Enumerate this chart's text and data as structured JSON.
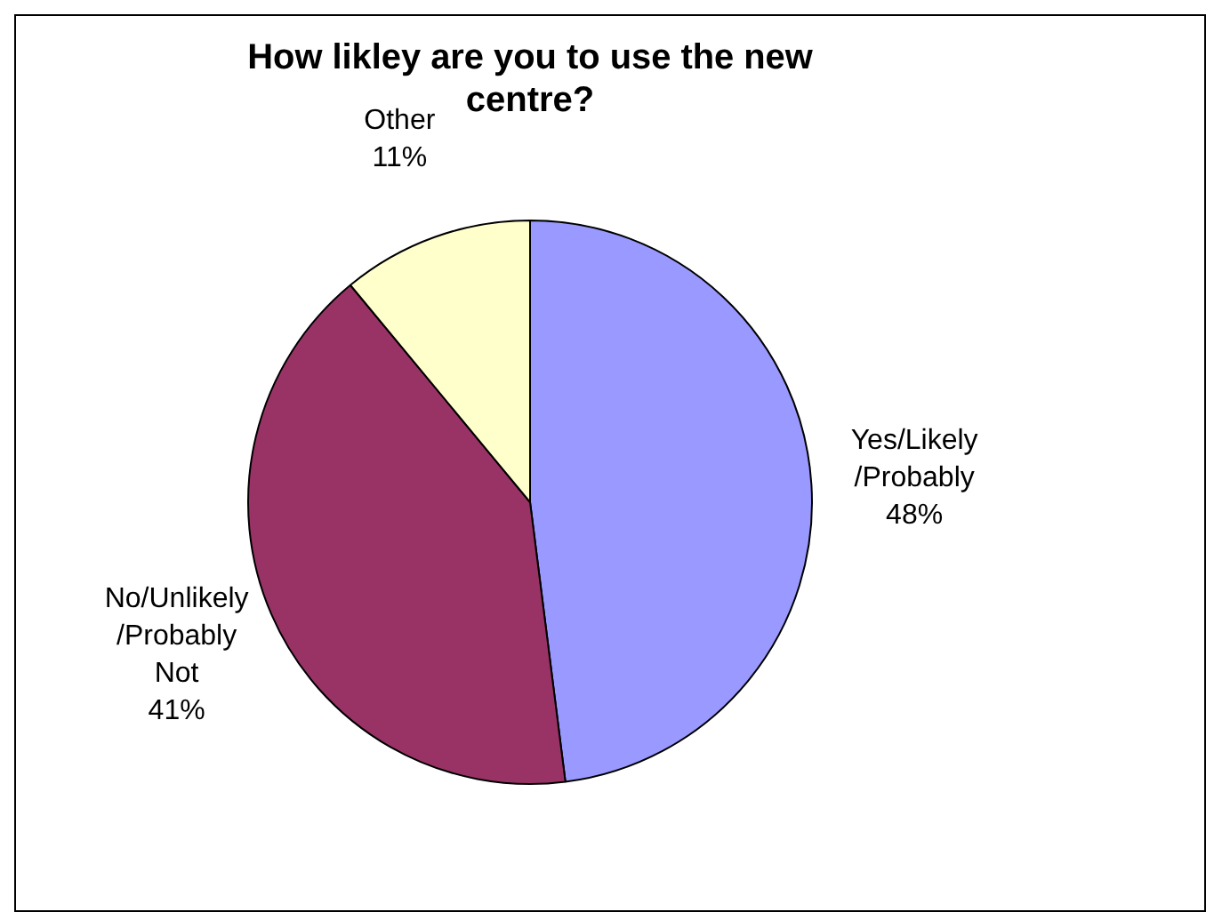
{
  "chart_data": {
    "type": "pie",
    "title": "How likley are you to use the new centre?",
    "categories": [
      "Yes/Likely/Probably",
      "No/Unlikely/Probably Not",
      "Other"
    ],
    "values": [
      48,
      41,
      11
    ],
    "value_labels": [
      "48%",
      "41%",
      "11%"
    ],
    "colors": [
      "#9999ff",
      "#993366",
      "#ffffcc"
    ],
    "legend": false
  }
}
